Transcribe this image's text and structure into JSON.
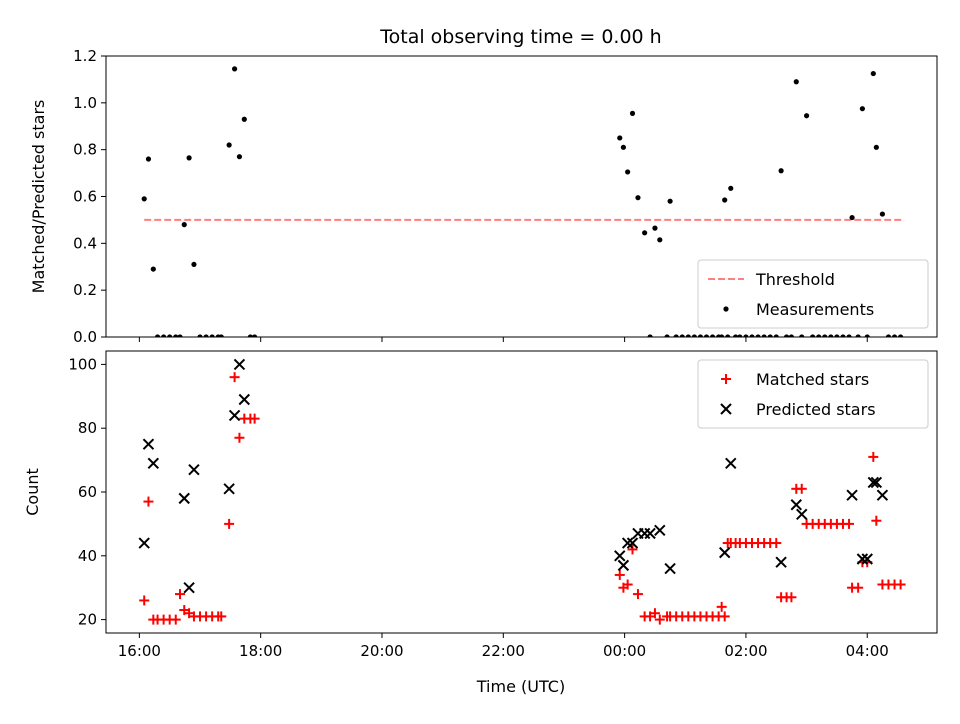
{
  "chart_data": {
    "title": "Total observing time = 0.00 h",
    "xlabel": "Time (UTC)",
    "x_unit": "hours (UTC, 16:00 on first day = 16; next-day times continue past 24)",
    "xlim": [
      15.45,
      29.15
    ],
    "x_ticks": [
      {
        "value": 16,
        "label": "16:00"
      },
      {
        "value": 18,
        "label": "18:00"
      },
      {
        "value": 20,
        "label": "20:00"
      },
      {
        "value": 22,
        "label": "22:00"
      },
      {
        "value": 24,
        "label": "00:00"
      },
      {
        "value": 26,
        "label": "02:00"
      },
      {
        "value": 28,
        "label": "04:00"
      }
    ],
    "colors": {
      "threshold": "#ff7f7f",
      "measurements": "#000000",
      "matched": "#ff0000",
      "predicted": "#000000"
    },
    "panels": [
      {
        "type": "scatter",
        "ylabel": "Matched/Predicted stars",
        "ylim": [
          0,
          1.2
        ],
        "y_ticks": [
          "0.0",
          "0.2",
          "0.4",
          "0.6",
          "0.8",
          "1.0",
          "1.2"
        ],
        "legend": {
          "position": "lower-right",
          "entries": [
            "Threshold",
            "Measurements"
          ]
        },
        "threshold": {
          "name": "Threshold",
          "value": 0.5,
          "x_range": [
            16.08,
            28.6
          ]
        },
        "series": [
          {
            "name": "Measurements",
            "x": [
              16.08,
              16.15,
              16.23,
              16.3,
              16.4,
              16.5,
              16.6,
              16.67,
              16.74,
              16.82,
              16.9,
              17.0,
              17.1,
              17.2,
              17.3,
              17.35,
              17.48,
              17.57,
              17.65,
              17.73,
              17.83,
              17.9,
              23.92,
              23.98,
              24.05,
              24.13,
              24.22,
              24.33,
              24.42,
              24.5,
              24.58,
              24.7,
              24.75,
              24.85,
              24.95,
              25.05,
              25.15,
              25.25,
              25.35,
              25.45,
              25.55,
              25.6,
              25.65,
              25.7,
              25.75,
              25.83,
              25.9,
              26.0,
              26.1,
              26.2,
              26.3,
              26.4,
              26.5,
              26.58,
              26.67,
              26.75,
              26.83,
              26.92,
              27.0,
              27.1,
              27.2,
              27.3,
              27.4,
              27.5,
              27.6,
              27.7,
              27.75,
              27.85,
              27.92,
              28.0,
              28.1,
              28.15,
              28.25,
              28.35,
              28.45,
              28.55
            ],
            "y": [
              0.59,
              0.76,
              0.29,
              0.0,
              0.0,
              0.0,
              0.0,
              0.0,
              0.48,
              0.765,
              0.31,
              0.0,
              0.0,
              0.0,
              0.0,
              0.0,
              0.82,
              1.145,
              0.77,
              0.93,
              0.0,
              0.0,
              0.85,
              0.81,
              0.705,
              0.955,
              0.595,
              0.445,
              0.0,
              0.465,
              0.415,
              0.0,
              0.58,
              0.0,
              0.0,
              0.0,
              0.0,
              0.0,
              0.0,
              0.0,
              0.0,
              0.0,
              0.585,
              0.0,
              0.635,
              0.0,
              0.0,
              0.0,
              0.0,
              0.0,
              0.0,
              0.0,
              0.0,
              0.71,
              0.0,
              0.0,
              1.09,
              0.0,
              0.945,
              0.0,
              0.0,
              0.0,
              0.0,
              0.0,
              0.0,
              0.0,
              0.51,
              0.0,
              0.975,
              0.0,
              1.125,
              0.81,
              0.525,
              0.0,
              0.0,
              0.0
            ]
          }
        ]
      },
      {
        "type": "scatter",
        "ylabel": "Count",
        "ylim": [
          15.8,
          104.2
        ],
        "y_ticks": [
          "20",
          "40",
          "60",
          "80",
          "100"
        ],
        "legend": {
          "position": "upper-right",
          "entries": [
            "Matched stars",
            "Predicted stars"
          ]
        },
        "series": [
          {
            "name": "Matched stars",
            "marker": "+",
            "x": [
              16.08,
              16.15,
              16.23,
              16.3,
              16.4,
              16.5,
              16.6,
              16.67,
              16.74,
              16.82,
              16.9,
              17.0,
              17.1,
              17.2,
              17.3,
              17.35,
              17.48,
              17.57,
              17.65,
              17.73,
              17.83,
              17.9,
              23.92,
              23.98,
              24.05,
              24.13,
              24.22,
              24.33,
              24.42,
              24.5,
              24.58,
              24.7,
              24.75,
              24.85,
              24.95,
              25.05,
              25.15,
              25.25,
              25.35,
              25.45,
              25.55,
              25.6,
              25.65,
              25.7,
              25.75,
              25.83,
              25.9,
              26.0,
              26.1,
              26.2,
              26.3,
              26.4,
              26.5,
              26.58,
              26.67,
              26.75,
              26.83,
              26.92,
              27.0,
              27.1,
              27.2,
              27.3,
              27.4,
              27.5,
              27.6,
              27.7,
              27.75,
              27.85,
              27.92,
              28.0,
              28.1,
              28.15,
              28.25,
              28.35,
              28.45,
              28.55
            ],
            "y": [
              26,
              57,
              20,
              20,
              20,
              20,
              20,
              28,
              23,
              22,
              21,
              21,
              21,
              21,
              21,
              21,
              50,
              96,
              77,
              83,
              83,
              83,
              34,
              30,
              31,
              42,
              28,
              21,
              21,
              22,
              20,
              21,
              21,
              21,
              21,
              21,
              21,
              21,
              21,
              21,
              21,
              24,
              21,
              44,
              44,
              44,
              44,
              44,
              44,
              44,
              44,
              44,
              44,
              27,
              27,
              27,
              61,
              61,
              50,
              50,
              50,
              50,
              50,
              50,
              50,
              50,
              30,
              30,
              38,
              38,
              71,
              51,
              31,
              31,
              31,
              31
            ]
          },
          {
            "name": "Predicted stars",
            "marker": "x",
            "x": [
              16.08,
              16.15,
              16.23,
              16.74,
              16.82,
              16.9,
              17.48,
              17.57,
              17.65,
              17.73,
              23.92,
              23.98,
              24.05,
              24.13,
              24.22,
              24.33,
              24.42,
              24.58,
              24.75,
              25.65,
              25.75,
              26.58,
              26.83,
              26.92,
              27.75,
              27.92,
              28.0,
              28.1,
              28.15,
              28.25
            ],
            "y": [
              44,
              75,
              69,
              58,
              30,
              67,
              61,
              84,
              100,
              89,
              40,
              37,
              44,
              44,
              47,
              47,
              47,
              48,
              36,
              41,
              69,
              38,
              56,
              53,
              59,
              39,
              39,
              63,
              63,
              59
            ]
          }
        ]
      }
    ]
  }
}
